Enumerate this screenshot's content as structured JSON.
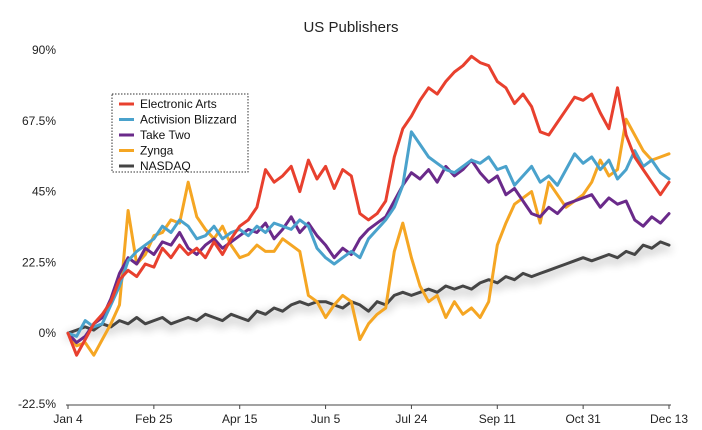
{
  "chart_data": {
    "type": "line",
    "title": "US Publishers",
    "xlabel": "",
    "ylabel": "",
    "x_ticks": [
      "Jan 4",
      "Feb 25",
      "Apr 15",
      "Jun 5",
      "Jul 24",
      "Sep 11",
      "Oct 31",
      "Dec 13"
    ],
    "y_ticks": [
      "90%",
      "67.5%",
      "45%",
      "22.5%",
      "0%",
      "-22.5%"
    ],
    "y_tick_values": [
      90,
      67.5,
      45,
      22.5,
      0,
      -22.5
    ],
    "ylim": [
      -22.5,
      90
    ],
    "x_range": [
      0,
      7
    ],
    "grid": false,
    "legend_position": "upper-left",
    "series": [
      {
        "name": "Electronic Arts",
        "color": "#e8402e",
        "x": [
          0,
          0.1,
          0.2,
          0.3,
          0.4,
          0.5,
          0.6,
          0.7,
          0.8,
          0.9,
          1.0,
          1.1,
          1.2,
          1.3,
          1.4,
          1.5,
          1.6,
          1.7,
          1.8,
          1.9,
          2.0,
          2.1,
          2.2,
          2.3,
          2.4,
          2.5,
          2.6,
          2.7,
          2.8,
          2.9,
          3.0,
          3.1,
          3.2,
          3.3,
          3.4,
          3.5,
          3.6,
          3.7,
          3.8,
          3.9,
          4.0,
          4.1,
          4.2,
          4.3,
          4.4,
          4.5,
          4.6,
          4.7,
          4.8,
          4.9,
          5.0,
          5.1,
          5.2,
          5.3,
          5.4,
          5.5,
          5.6,
          5.7,
          5.8,
          5.9,
          6.0,
          6.1,
          6.2,
          6.3,
          6.4,
          6.5,
          6.6,
          6.7,
          6.8,
          6.9,
          7.0
        ],
        "values": [
          0,
          -7,
          -2,
          3,
          6,
          10,
          17,
          20,
          18,
          22,
          21,
          27,
          24,
          28,
          25,
          27,
          24,
          29,
          25,
          30,
          34,
          36,
          40,
          52,
          48,
          50,
          53,
          45,
          55,
          49,
          53,
          46,
          52,
          50,
          38,
          36,
          38,
          42,
          56,
          65,
          69,
          74,
          78,
          76,
          80,
          83,
          85,
          88,
          86,
          85,
          80,
          78,
          73,
          76,
          72,
          64,
          63,
          67,
          71,
          75,
          74,
          76,
          70,
          65,
          78,
          63,
          56,
          52,
          48,
          44,
          48
        ]
      },
      {
        "name": "Activision Blizzard",
        "color": "#4aa2cc",
        "x": [
          0,
          0.1,
          0.2,
          0.3,
          0.4,
          0.5,
          0.6,
          0.7,
          0.8,
          0.9,
          1.0,
          1.1,
          1.2,
          1.3,
          1.4,
          1.5,
          1.6,
          1.7,
          1.8,
          1.9,
          2.0,
          2.1,
          2.2,
          2.3,
          2.4,
          2.5,
          2.6,
          2.7,
          2.8,
          2.9,
          3.0,
          3.1,
          3.2,
          3.3,
          3.4,
          3.5,
          3.6,
          3.7,
          3.8,
          3.9,
          4.0,
          4.1,
          4.2,
          4.3,
          4.4,
          4.5,
          4.6,
          4.7,
          4.8,
          4.9,
          5.0,
          5.1,
          5.2,
          5.3,
          5.4,
          5.5,
          5.6,
          5.7,
          5.8,
          5.9,
          6.0,
          6.1,
          6.2,
          6.3,
          6.4,
          6.5,
          6.6,
          6.7,
          6.8,
          6.9,
          7.0
        ],
        "values": [
          0,
          -1,
          4,
          2,
          3,
          9,
          15,
          23,
          26,
          28,
          30,
          34,
          32,
          36,
          34,
          30,
          31,
          34,
          30,
          32,
          33,
          31,
          34,
          32,
          35,
          34,
          33,
          36,
          34,
          27,
          24,
          22,
          24,
          26,
          24,
          30,
          33,
          36,
          40,
          47,
          64,
          60,
          56,
          54,
          52,
          51,
          53,
          55,
          54,
          56,
          52,
          53,
          47,
          50,
          53,
          48,
          50,
          47,
          52,
          57,
          54,
          56,
          52,
          55,
          49,
          52,
          58,
          53,
          55,
          51,
          49
        ]
      },
      {
        "name": "Take Two",
        "color": "#6a2a8a",
        "x": [
          0,
          0.1,
          0.2,
          0.3,
          0.4,
          0.5,
          0.6,
          0.7,
          0.8,
          0.9,
          1.0,
          1.1,
          1.2,
          1.3,
          1.4,
          1.5,
          1.6,
          1.7,
          1.8,
          1.9,
          2.0,
          2.1,
          2.2,
          2.3,
          2.4,
          2.5,
          2.6,
          2.7,
          2.8,
          2.9,
          3.0,
          3.1,
          3.2,
          3.3,
          3.4,
          3.5,
          3.6,
          3.7,
          3.8,
          3.9,
          4.0,
          4.1,
          4.2,
          4.3,
          4.4,
          4.5,
          4.6,
          4.7,
          4.8,
          4.9,
          5.0,
          5.1,
          5.2,
          5.3,
          5.4,
          5.5,
          5.6,
          5.7,
          5.8,
          5.9,
          6.0,
          6.1,
          6.2,
          6.3,
          6.4,
          6.5,
          6.6,
          6.7,
          6.8,
          6.9,
          7.0
        ],
        "values": [
          0,
          -3,
          -1,
          3,
          5,
          11,
          19,
          24,
          22,
          27,
          25,
          29,
          28,
          32,
          27,
          25,
          28,
          30,
          27,
          29,
          31,
          33,
          32,
          35,
          30,
          33,
          37,
          32,
          35,
          31,
          28,
          24,
          27,
          25,
          30,
          33,
          35,
          37,
          42,
          47,
          51,
          49,
          52,
          48,
          53,
          50,
          52,
          55,
          51,
          48,
          50,
          44,
          46,
          42,
          38,
          37,
          40,
          38,
          41,
          42,
          43,
          44,
          40,
          43,
          41,
          42,
          36,
          34,
          37,
          35,
          38
        ]
      },
      {
        "name": "Zynga",
        "color": "#f5a623",
        "x": [
          0,
          0.1,
          0.2,
          0.3,
          0.4,
          0.5,
          0.6,
          0.7,
          0.8,
          0.9,
          1.0,
          1.1,
          1.2,
          1.3,
          1.4,
          1.5,
          1.6,
          1.7,
          1.8,
          1.9,
          2.0,
          2.1,
          2.2,
          2.3,
          2.4,
          2.5,
          2.6,
          2.7,
          2.8,
          2.9,
          3.0,
          3.1,
          3.2,
          3.3,
          3.4,
          3.5,
          3.6,
          3.7,
          3.8,
          3.9,
          4.0,
          4.1,
          4.2,
          4.3,
          4.4,
          4.5,
          4.6,
          4.7,
          4.8,
          4.9,
          5.0,
          5.1,
          5.2,
          5.3,
          5.4,
          5.5,
          5.6,
          5.7,
          5.8,
          5.9,
          6.0,
          6.1,
          6.2,
          6.3,
          6.4,
          6.5,
          6.6,
          6.7,
          6.8,
          6.9,
          7.0
        ],
        "values": [
          0,
          -4,
          -3,
          -7,
          -2,
          3,
          9,
          39,
          22,
          25,
          31,
          32,
          36,
          35,
          48,
          37,
          33,
          30,
          34,
          28,
          24,
          25,
          28,
          26,
          26,
          30,
          28,
          26,
          12,
          10,
          5,
          9,
          12,
          10,
          -2,
          3,
          6,
          8,
          26,
          35,
          24,
          15,
          10,
          12,
          5,
          10,
          6,
          8,
          5,
          10,
          28,
          35,
          41,
          43,
          45,
          35,
          48,
          44,
          40,
          42,
          44,
          48,
          55,
          50,
          52,
          68,
          63,
          58,
          55,
          56,
          57
        ]
      },
      {
        "name": "NASDAQ",
        "color": "#444444",
        "x": [
          0,
          0.1,
          0.2,
          0.3,
          0.4,
          0.5,
          0.6,
          0.7,
          0.8,
          0.9,
          1.0,
          1.1,
          1.2,
          1.3,
          1.4,
          1.5,
          1.6,
          1.7,
          1.8,
          1.9,
          2.0,
          2.1,
          2.2,
          2.3,
          2.4,
          2.5,
          2.6,
          2.7,
          2.8,
          2.9,
          3.0,
          3.1,
          3.2,
          3.3,
          3.4,
          3.5,
          3.6,
          3.7,
          3.8,
          3.9,
          4.0,
          4.1,
          4.2,
          4.3,
          4.4,
          4.5,
          4.6,
          4.7,
          4.8,
          4.9,
          5.0,
          5.1,
          5.2,
          5.3,
          5.4,
          5.5,
          5.6,
          5.7,
          5.8,
          5.9,
          6.0,
          6.1,
          6.2,
          6.3,
          6.4,
          6.5,
          6.6,
          6.7,
          6.8,
          6.9,
          7.0
        ],
        "values": [
          0,
          1,
          2,
          1,
          3,
          2,
          4,
          3,
          5,
          3,
          4,
          5,
          3,
          4,
          5,
          4,
          6,
          5,
          4,
          6,
          5,
          4,
          7,
          6,
          8,
          7,
          9,
          10,
          9,
          10,
          10,
          9,
          8,
          10,
          9,
          7,
          10,
          9,
          12,
          13,
          12,
          13,
          14,
          13,
          15,
          14,
          15,
          14,
          16,
          17,
          16,
          18,
          17,
          19,
          18,
          19,
          20,
          21,
          22,
          23,
          24,
          23,
          24,
          25,
          24,
          26,
          25,
          28,
          27,
          29,
          28
        ]
      }
    ]
  }
}
